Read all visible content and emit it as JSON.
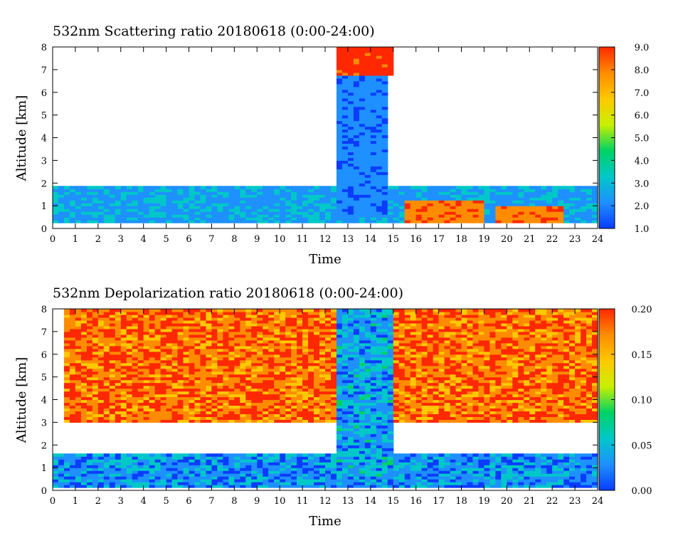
{
  "chart_data": [
    {
      "type": "heatmap",
      "title": "532nm Scattering ratio  20180618 (0:00-24:00)",
      "xlabel": "Time",
      "ylabel": "Altitude [km]",
      "xlim": [
        0,
        24
      ],
      "ylim": [
        0,
        8
      ],
      "x_ticks": [
        "0",
        "1",
        "2",
        "3",
        "4",
        "5",
        "6",
        "7",
        "8",
        "9",
        "10",
        "11",
        "12",
        "13",
        "14",
        "15",
        "16",
        "17",
        "18",
        "19",
        "20",
        "21",
        "22",
        "23",
        "24"
      ],
      "y_ticks": [
        "0",
        "1",
        "2",
        "3",
        "4",
        "5",
        "6",
        "7",
        "8"
      ],
      "colorbar": {
        "range": [
          1.0,
          9.0
        ],
        "ticks": [
          "1.0",
          "2.0",
          "3.0",
          "4.0",
          "5.0",
          "6.0",
          "7.0",
          "8.0",
          "9.0"
        ],
        "colors": [
          "#0a3cff",
          "#1e90ff",
          "#00c8c8",
          "#00d264",
          "#c8f000",
          "#ffc800",
          "#ff8c00",
          "#ff2800"
        ]
      },
      "features": [
        {
          "desc": "boundary layer aerosol",
          "time": [
            0,
            24
          ],
          "altitude_km": [
            0.2,
            1.9
          ],
          "value": 2.5
        },
        {
          "desc": "thick cloud",
          "time": [
            12.6,
            14.8
          ],
          "altitude_km": [
            0.5,
            6.8
          ],
          "value": 2.0
        },
        {
          "desc": "cloud top",
          "time": [
            12.5,
            15.0
          ],
          "altitude_km": [
            6.8,
            8.0
          ],
          "value": 9.0
        },
        {
          "desc": "dense aerosol layer",
          "time": [
            15.5,
            19.0
          ],
          "altitude_km": [
            0.3,
            1.2
          ],
          "value": 8.0
        },
        {
          "desc": "dense aerosol layer",
          "time": [
            19.5,
            22.5
          ],
          "altitude_km": [
            0.3,
            1.0
          ],
          "value": 8.0
        }
      ]
    },
    {
      "type": "heatmap",
      "title": "532nm Depolarization ratio  20180618 (0:00-24:00)",
      "xlabel": "Time",
      "ylabel": "Altitude [km]",
      "xlim": [
        0,
        24
      ],
      "ylim": [
        0,
        8
      ],
      "x_ticks": [
        "0",
        "1",
        "2",
        "3",
        "4",
        "5",
        "6",
        "7",
        "8",
        "9",
        "10",
        "11",
        "12",
        "13",
        "14",
        "15",
        "16",
        "17",
        "18",
        "19",
        "20",
        "21",
        "22",
        "23",
        "24"
      ],
      "y_ticks": [
        "0",
        "1",
        "2",
        "3",
        "4",
        "5",
        "6",
        "7",
        "8"
      ],
      "colorbar": {
        "range": [
          0.0,
          0.2
        ],
        "ticks": [
          "0.00",
          "0.05",
          "0.10",
          "0.15",
          "0.20"
        ],
        "colors": [
          "#0a3cff",
          "#1e90ff",
          "#00c8c8",
          "#00d264",
          "#c8f000",
          "#ffc800",
          "#ff8c00",
          "#ff2800"
        ]
      },
      "features": [
        {
          "desc": "low depolarization boundary layer",
          "time": [
            0,
            24
          ],
          "altitude_km": [
            0.1,
            1.6
          ],
          "value": 0.03
        },
        {
          "desc": "high depolarization upper layer",
          "time": [
            0.5,
            24
          ],
          "altitude_km": [
            3.0,
            8.0
          ],
          "value": 0.18
        },
        {
          "desc": "cloud column",
          "time": [
            12.6,
            15.0
          ],
          "altitude_km": [
            0.5,
            8.0
          ],
          "value": 0.04
        }
      ]
    }
  ]
}
